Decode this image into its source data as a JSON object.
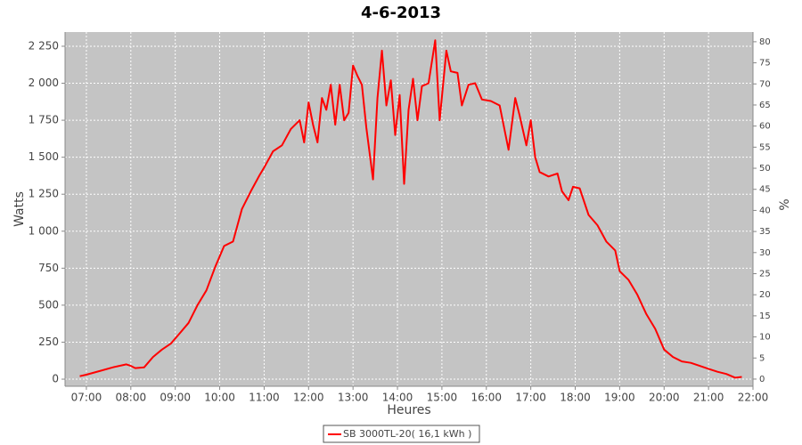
{
  "chart_data": {
    "type": "line",
    "title": "4-6-2013",
    "x_label": "Heures",
    "y_label": "Watts",
    "y2_label": "%",
    "xlim": [
      6.52,
      22.0
    ],
    "xticks": [
      {
        "value": 7,
        "label": "07:00"
      },
      {
        "value": 8,
        "label": "08:00"
      },
      {
        "value": 9,
        "label": "09:00"
      },
      {
        "value": 10,
        "label": "10:00"
      },
      {
        "value": 11,
        "label": "11:00"
      },
      {
        "value": 12,
        "label": "12:00"
      },
      {
        "value": 13,
        "label": "13:00"
      },
      {
        "value": 14,
        "label": "14:00"
      },
      {
        "value": 15,
        "label": "15:00"
      },
      {
        "value": 16,
        "label": "16:00"
      },
      {
        "value": 17,
        "label": "17:00"
      },
      {
        "value": 18,
        "label": "18:00"
      },
      {
        "value": 19,
        "label": "19:00"
      },
      {
        "value": 20,
        "label": "20:00"
      },
      {
        "value": 21,
        "label": "21:00"
      },
      {
        "value": 22,
        "label": "22:00"
      }
    ],
    "ylim": [
      -48,
      2346
    ],
    "yticks": [
      0,
      250,
      500,
      750,
      {
        "value": 1000,
        "label": "1 000"
      },
      {
        "value": 1250,
        "label": "1 250"
      },
      {
        "value": 1500,
        "label": "1 500"
      },
      {
        "value": 1750,
        "label": "1 750"
      },
      {
        "value": 2000,
        "label": "2 000"
      },
      {
        "value": 2250,
        "label": "2 250"
      }
    ],
    "y2lim": [
      -1.7,
      82.3
    ],
    "y2ticks": [
      0,
      5,
      10,
      15,
      20,
      25,
      30,
      35,
      40,
      45,
      50,
      55,
      60,
      65,
      70,
      75,
      80
    ],
    "grid": true,
    "legend": "bottom",
    "x": [
      6.85,
      7.0,
      7.3,
      7.6,
      7.9,
      8.0,
      8.1,
      8.3,
      8.5,
      8.7,
      8.9,
      9.1,
      9.3,
      9.5,
      9.7,
      9.9,
      10.1,
      10.3,
      10.5,
      10.7,
      10.9,
      11.0,
      11.2,
      11.4,
      11.6,
      11.8,
      11.9,
      12.0,
      12.1,
      12.2,
      12.3,
      12.4,
      12.5,
      12.6,
      12.7,
      12.8,
      12.9,
      13.0,
      13.1,
      13.2,
      13.3,
      13.45,
      13.55,
      13.65,
      13.75,
      13.85,
      13.95,
      14.05,
      14.15,
      14.25,
      14.35,
      14.45,
      14.55,
      14.7,
      14.85,
      14.95,
      15.1,
      15.2,
      15.35,
      15.45,
      15.6,
      15.75,
      15.9,
      16.1,
      16.3,
      16.5,
      16.65,
      16.75,
      16.9,
      17.0,
      17.1,
      17.2,
      17.4,
      17.6,
      17.7,
      17.85,
      17.95,
      18.1,
      18.3,
      18.5,
      18.7,
      18.9,
      19.0,
      19.2,
      19.4,
      19.6,
      19.8,
      20.0,
      20.2,
      20.4,
      20.6,
      20.8,
      21.0,
      21.2,
      21.4,
      21.6,
      21.75
    ],
    "series": [
      {
        "name": "SB 3000TL-20( 16,1 kWh )",
        "color": "#ff0000",
        "values": [
          20,
          30,
          55,
          80,
          100,
          90,
          75,
          80,
          150,
          200,
          240,
          310,
          380,
          500,
          600,
          760,
          900,
          930,
          1150,
          1270,
          1380,
          1430,
          1540,
          1580,
          1690,
          1750,
          1600,
          1870,
          1720,
          1600,
          1900,
          1820,
          1990,
          1720,
          1990,
          1750,
          1800,
          2120,
          2050,
          1990,
          1700,
          1350,
          1900,
          2220,
          1850,
          2020,
          1650,
          1920,
          1320,
          1820,
          2030,
          1750,
          1980,
          2000,
          2290,
          1750,
          2220,
          2080,
          2070,
          1850,
          1990,
          2000,
          1890,
          1880,
          1850,
          1550,
          1900,
          1780,
          1580,
          1750,
          1500,
          1400,
          1370,
          1390,
          1270,
          1210,
          1300,
          1290,
          1110,
          1040,
          930,
          870,
          730,
          670,
          570,
          440,
          340,
          200,
          150,
          120,
          110,
          90,
          70,
          50,
          35,
          10,
          15
        ]
      }
    ]
  }
}
